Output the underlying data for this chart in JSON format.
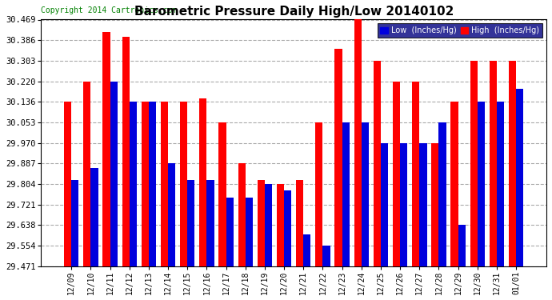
{
  "title": "Barometric Pressure Daily High/Low 20140102",
  "copyright": "Copyright 2014 Cartronics.com",
  "background_color": "#ffffff",
  "plot_bg_color": "#ffffff",
  "grid_color": "#aaaaaa",
  "low_color": "#0000dd",
  "high_color": "#ff0000",
  "ymin": 29.471,
  "ymax": 30.469,
  "yticks": [
    29.471,
    29.554,
    29.638,
    29.721,
    29.804,
    29.887,
    29.97,
    30.053,
    30.136,
    30.22,
    30.303,
    30.386,
    30.469
  ],
  "categories": [
    "12/09",
    "12/10",
    "12/11",
    "12/12",
    "12/13",
    "12/14",
    "12/15",
    "12/16",
    "12/17",
    "12/18",
    "12/19",
    "12/20",
    "12/21",
    "12/22",
    "12/23",
    "12/24",
    "12/25",
    "12/26",
    "12/27",
    "12/28",
    "12/29",
    "12/30",
    "12/31",
    "01/01"
  ],
  "low_values": [
    29.82,
    29.87,
    30.22,
    30.136,
    30.136,
    29.887,
    29.82,
    29.82,
    29.75,
    29.75,
    29.804,
    29.78,
    29.6,
    29.554,
    30.053,
    30.053,
    29.97,
    29.97,
    29.97,
    30.053,
    29.638,
    30.136,
    30.136,
    30.19
  ],
  "high_values": [
    30.136,
    30.22,
    30.42,
    30.4,
    30.136,
    30.136,
    30.136,
    30.15,
    30.053,
    29.887,
    29.82,
    29.804,
    29.82,
    30.053,
    30.35,
    30.469,
    30.303,
    30.22,
    30.22,
    29.97,
    30.136,
    30.303,
    30.303,
    30.303
  ]
}
